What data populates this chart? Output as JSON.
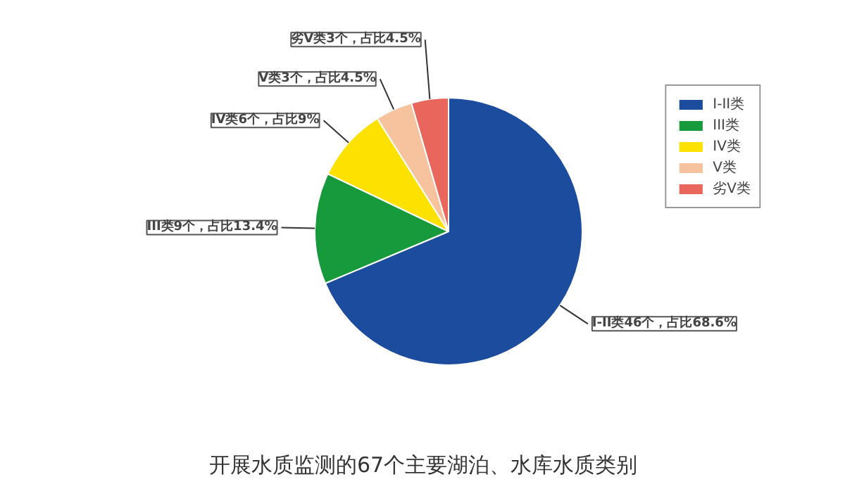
{
  "chart_data": {
    "type": "pie",
    "title": "开展水质监测的67个主要湖泊、水库水质类别",
    "categories": [
      "I-II类",
      "III类",
      "IV类",
      "V类",
      "劣V类"
    ],
    "values": [
      46,
      9,
      6,
      3,
      3
    ],
    "colors": [
      "#1c4c9e",
      "#179a3b",
      "#fde100",
      "#f6c39e",
      "#e9665c"
    ],
    "value_labels": [
      "I-II类46个，占比68.6%",
      "III类9个，占比13.4%",
      "IV类6个，占比9%",
      "V类3个，占比4.5%",
      "劣V类3个，占比4.5%"
    ],
    "legend": "top right"
  }
}
